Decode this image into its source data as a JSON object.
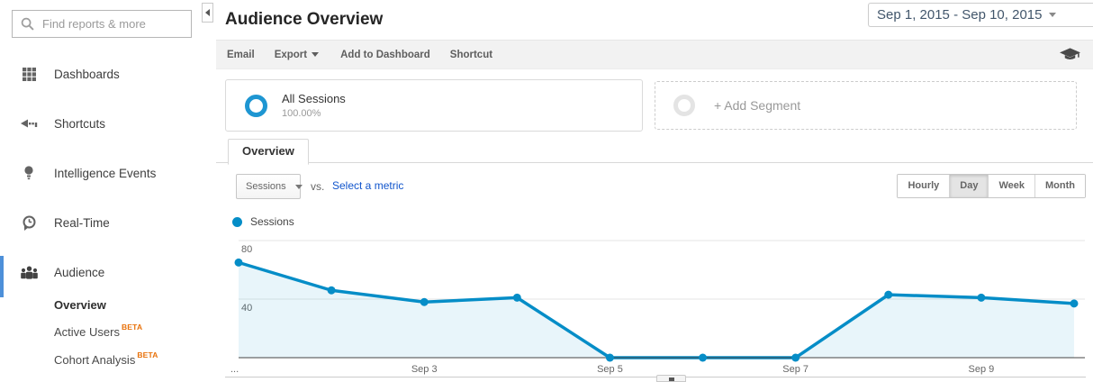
{
  "sidebar": {
    "search": {
      "placeholder": "Find reports & more"
    },
    "items": [
      {
        "label": "Dashboards",
        "icon": "grid-icon"
      },
      {
        "label": "Shortcuts",
        "icon": "shortcut-arrow-icon"
      },
      {
        "label": "Intelligence Events",
        "icon": "lightbulb-icon"
      },
      {
        "label": "Real-Time",
        "icon": "realtime-clock-icon"
      },
      {
        "label": "Audience",
        "icon": "people-icon",
        "active": true
      }
    ],
    "audience_children": [
      {
        "label": "Overview",
        "active": true
      },
      {
        "label": "Active Users",
        "badge": "BETA"
      },
      {
        "label": "Cohort Analysis",
        "badge": "BETA"
      }
    ]
  },
  "header": {
    "title": "Audience Overview",
    "date_range": "Sep 1, 2015 - Sep 10, 2015"
  },
  "toolbar": {
    "email": "Email",
    "export": "Export",
    "add_to_dashboard": "Add to Dashboard",
    "shortcut": "Shortcut"
  },
  "segments": {
    "all_sessions": {
      "label": "All Sessions",
      "percent": "100.00%"
    },
    "add_segment_label": "+ Add Segment"
  },
  "tabs": {
    "overview": "Overview"
  },
  "controls": {
    "metric_dropdown": "Sessions",
    "vs_label": "vs.",
    "select_metric_link": "Select a metric",
    "granularity": [
      "Hourly",
      "Day",
      "Week",
      "Month"
    ],
    "granularity_active": "Day"
  },
  "legend": {
    "label": "Sessions"
  },
  "chart_data": {
    "type": "line",
    "title": "Sessions by day",
    "x": [
      "Sep 1",
      "Sep 2",
      "Sep 3",
      "Sep 4",
      "Sep 5",
      "Sep 6",
      "Sep 7",
      "Sep 8",
      "Sep 9",
      "Sep 10"
    ],
    "series": [
      {
        "name": "Sessions",
        "values": [
          65,
          46,
          38,
          41,
          0,
          0,
          0,
          43,
          41,
          37
        ]
      }
    ],
    "ylim": [
      0,
      80
    ],
    "yticks": [
      40,
      80
    ],
    "x_tick_labels": [
      "...",
      "Sep 3",
      "Sep 5",
      "Sep 7",
      "Sep 9"
    ],
    "x_tick_positions": [
      0,
      2,
      4,
      6,
      8
    ],
    "grid": true,
    "legend_position": "top-left",
    "line_color": "#058dc7",
    "area_opacity": 0.09
  },
  "colors": {
    "accent_blue": "#058dc7",
    "beta_orange": "#e8710a",
    "link_blue": "#1155cc",
    "nav_active_bar": "#4d90d9",
    "date_text": "#42566b",
    "segment_ring_blue": "#1e96d2"
  }
}
